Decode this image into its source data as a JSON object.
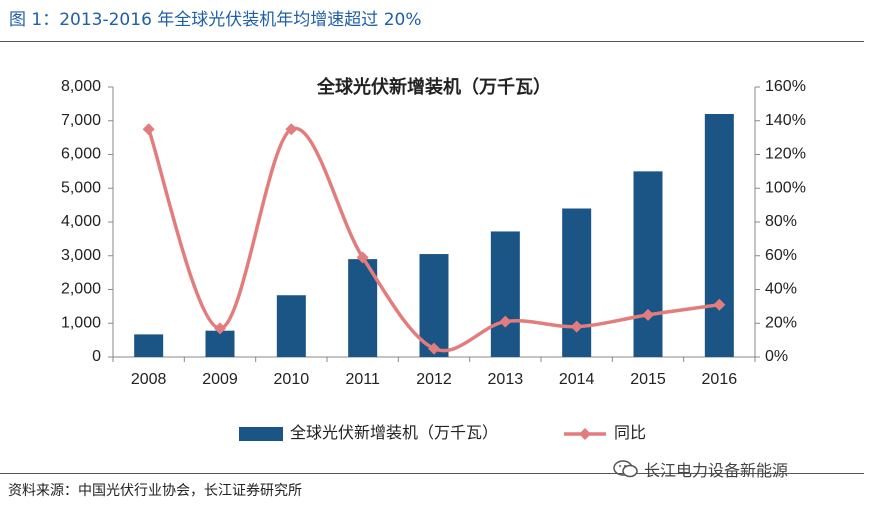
{
  "figure_title": "图 1：2013-2016 年全球光伏装机年均增速超过 20%",
  "source": "资料来源：中国光伏行业协会，长江证券研究所",
  "watermark": "长江电力设备新能源",
  "colors": {
    "bar": "#1b5586",
    "line": "#e37c7c",
    "marker": "#e37c7c",
    "figure_title": "#1f5fa8"
  },
  "chart_data": {
    "type": "bar",
    "title": "全球光伏新增装机（万千瓦）",
    "categories": [
      "2008",
      "2009",
      "2010",
      "2011",
      "2012",
      "2013",
      "2014",
      "2015",
      "2016"
    ],
    "series": [
      {
        "name": "全球光伏新增装机（万千瓦）",
        "type": "bar",
        "axis": "left",
        "values": [
          670,
          780,
          1830,
          2900,
          3050,
          3720,
          4400,
          5500,
          7200
        ]
      },
      {
        "name": "同比",
        "type": "line",
        "axis": "right",
        "values": [
          135,
          17,
          135,
          59,
          5,
          21,
          18,
          25,
          31
        ]
      }
    ],
    "yleft": {
      "lim": [
        0,
        8000
      ],
      "ticks": [
        "0",
        "1,000",
        "2,000",
        "3,000",
        "4,000",
        "5,000",
        "6,000",
        "7,000",
        "8,000"
      ]
    },
    "yright": {
      "lim": [
        0,
        160
      ],
      "ticks": [
        "0%",
        "20%",
        "40%",
        "60%",
        "80%",
        "100%",
        "120%",
        "140%",
        "160%"
      ]
    },
    "legend_position": "bottom",
    "grid": false
  }
}
